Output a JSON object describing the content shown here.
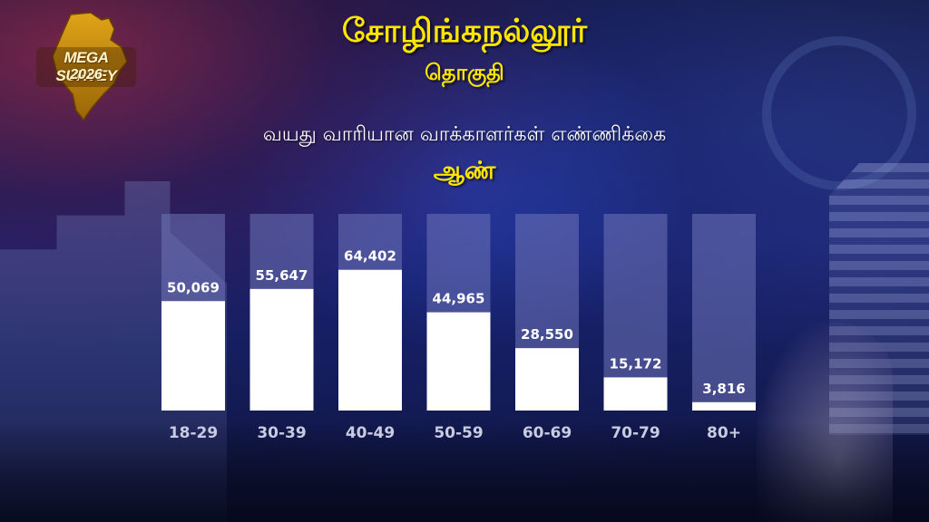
{
  "logo": {
    "line1": "MEGA SURVEY",
    "line2": "2026",
    "gold": "#e0a418",
    "gold_dark": "#9a6508"
  },
  "header": {
    "title": "சோழிங்கநல்லூர்",
    "subtitle": "தொகுதி"
  },
  "heading": "வயது வாரியான வாக்காளர்கள் எண்ணிக்கை",
  "gender_label": "ஆண்",
  "colors": {
    "title": "#ffe600",
    "bar_fill": "#ffffff",
    "bar_track": "#6f74b8",
    "label": "#ffffff",
    "category_label": "#c9cbe0"
  },
  "chart_data": {
    "type": "bar",
    "categories": [
      "18-29",
      "30-39",
      "40-49",
      "50-59",
      "60-69",
      "70-79",
      "80+"
    ],
    "values": [
      50069,
      55647,
      64402,
      44965,
      28550,
      15172,
      3816
    ],
    "value_labels": [
      "50,069",
      "55,647",
      "64,402",
      "44,965",
      "28,550",
      "15,172",
      "3,816"
    ],
    "ylim": [
      0,
      90000
    ],
    "grid": false,
    "legend": "none"
  }
}
